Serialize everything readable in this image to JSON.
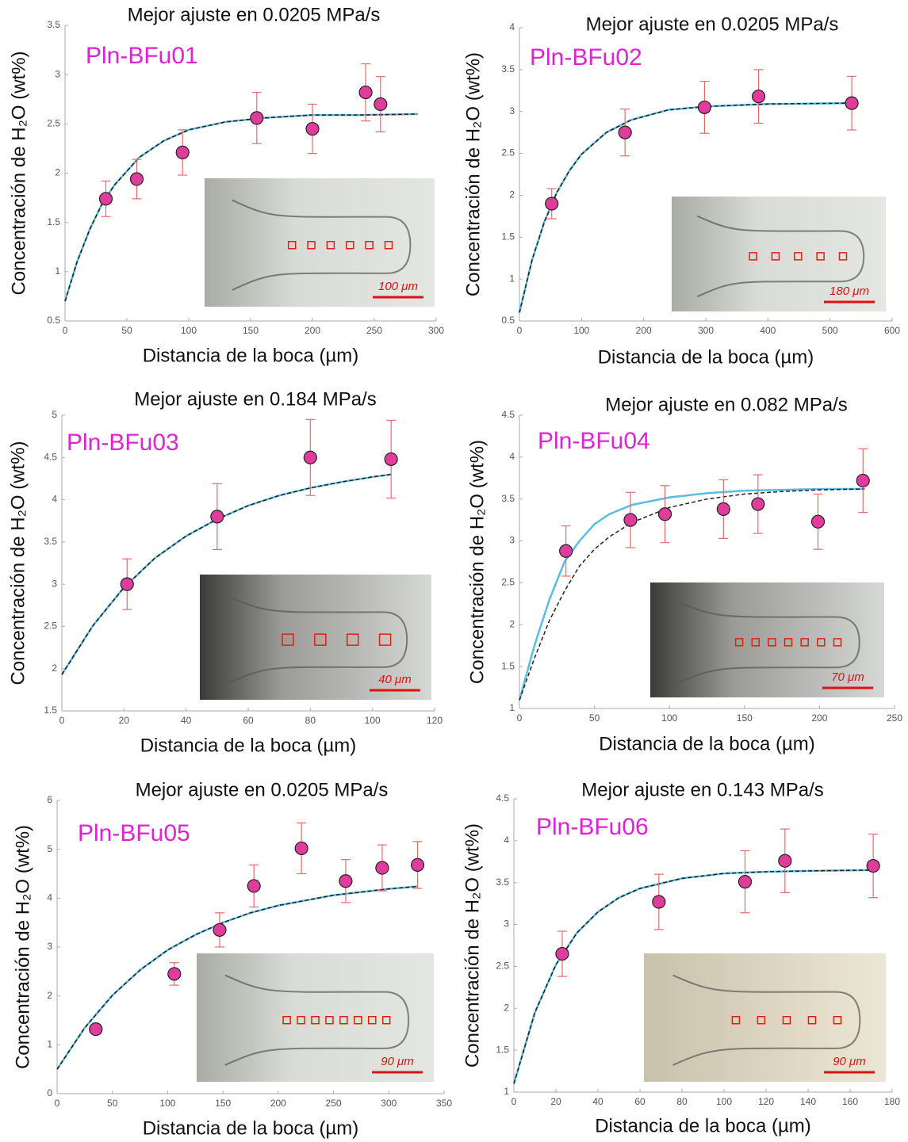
{
  "chart_data": [
    {
      "type": "scatter",
      "title": "Mejor ajuste en 0.0205 MPa/s",
      "label": "Pln-BFu01",
      "xlabel": "Distancia de la boca (µm)",
      "ylabel": "Concentración de H₂O (wt%)",
      "x": [
        33,
        58,
        95,
        155,
        200,
        243,
        255
      ],
      "values": [
        1.74,
        1.94,
        2.21,
        2.56,
        2.45,
        2.82,
        2.7
      ],
      "errors": [
        0.18,
        0.2,
        0.23,
        0.26,
        0.25,
        0.29,
        0.28
      ],
      "color": "#e03c9c",
      "error_color": "#e86a6a",
      "curves": [
        {
          "color": "#5bbde0",
          "dash": false,
          "x": [
            0,
            10,
            20,
            30,
            40,
            60,
            80,
            100,
            130,
            160,
            200,
            240,
            285
          ],
          "values": [
            0.7,
            1.11,
            1.43,
            1.69,
            1.88,
            2.16,
            2.33,
            2.44,
            2.52,
            2.56,
            2.59,
            2.59,
            2.6
          ]
        },
        {
          "color": "#222222",
          "dash": true,
          "x": [
            0,
            10,
            20,
            30,
            40,
            60,
            80,
            100,
            130,
            160,
            200,
            240,
            285
          ],
          "values": [
            0.7,
            1.11,
            1.43,
            1.69,
            1.88,
            2.16,
            2.33,
            2.44,
            2.52,
            2.56,
            2.59,
            2.59,
            2.6
          ]
        }
      ],
      "xlim": [
        0,
        300
      ],
      "ylim": [
        0.5,
        3.5
      ],
      "xticks": [
        0,
        50,
        100,
        150,
        200,
        250,
        300
      ],
      "yticks": [
        0.5,
        1,
        1.5,
        2,
        2.5,
        3,
        3.5
      ],
      "inset_scale": "100 μm"
    },
    {
      "type": "scatter",
      "title": "Mejor ajuste en 0.0205 MPa/s",
      "label": "Pln-BFu02",
      "xlabel": "Distancia de la boca (µm)",
      "ylabel": "Concentración de H₂O (wt%)",
      "x": [
        52,
        170,
        298,
        385,
        535
      ],
      "values": [
        1.9,
        2.75,
        3.05,
        3.18,
        3.1
      ],
      "errors": [
        0.18,
        0.28,
        0.31,
        0.32,
        0.32
      ],
      "color": "#e03c9c",
      "error_color": "#e86a6a",
      "curves": [
        {
          "color": "#5bbde0",
          "dash": false,
          "x": [
            0,
            20,
            40,
            60,
            80,
            100,
            140,
            180,
            240,
            300,
            400,
            540
          ],
          "values": [
            0.6,
            1.22,
            1.68,
            2.03,
            2.29,
            2.49,
            2.75,
            2.9,
            3.02,
            3.06,
            3.09,
            3.1
          ]
        },
        {
          "color": "#222222",
          "dash": true,
          "x": [
            0,
            20,
            40,
            60,
            80,
            100,
            140,
            180,
            240,
            300,
            400,
            540
          ],
          "values": [
            0.6,
            1.22,
            1.68,
            2.03,
            2.29,
            2.49,
            2.75,
            2.9,
            3.02,
            3.06,
            3.09,
            3.1
          ]
        }
      ],
      "xlim": [
        0,
        600
      ],
      "ylim": [
        0.5,
        4
      ],
      "xticks": [
        0,
        100,
        200,
        300,
        400,
        500,
        600
      ],
      "yticks": [
        0.5,
        1,
        1.5,
        2,
        2.5,
        3,
        3.5,
        4
      ],
      "inset_scale": "180 μm"
    },
    {
      "type": "scatter",
      "title": "Mejor ajuste en 0.184 MPa/s",
      "label": "Pln-BFu03",
      "xlabel": "Distancia de la boca (µm)",
      "ylabel": "Concentración de H₂O (wt%)",
      "x": [
        21,
        50,
        80,
        106
      ],
      "values": [
        3.0,
        3.8,
        4.5,
        4.48
      ],
      "errors": [
        0.3,
        0.39,
        0.45,
        0.46
      ],
      "color": "#e03c9c",
      "error_color": "#e86a6a",
      "curves": [
        {
          "color": "#5bbde0",
          "dash": false,
          "x": [
            0,
            10,
            20,
            30,
            40,
            50,
            60,
            70,
            80,
            90,
            100,
            106
          ],
          "values": [
            1.93,
            2.51,
            2.96,
            3.31,
            3.57,
            3.77,
            3.93,
            4.05,
            4.14,
            4.21,
            4.27,
            4.3
          ]
        },
        {
          "color": "#222222",
          "dash": true,
          "x": [
            0,
            10,
            20,
            30,
            40,
            50,
            60,
            70,
            80,
            90,
            100,
            106
          ],
          "values": [
            1.93,
            2.51,
            2.96,
            3.31,
            3.57,
            3.77,
            3.93,
            4.05,
            4.14,
            4.21,
            4.27,
            4.3
          ]
        }
      ],
      "xlim": [
        0,
        120
      ],
      "ylim": [
        1.5,
        5
      ],
      "xticks": [
        0,
        20,
        40,
        60,
        80,
        100,
        120
      ],
      "yticks": [
        1.5,
        2,
        2.5,
        3,
        3.5,
        4,
        4.5,
        5
      ],
      "inset_scale": "40 μm"
    },
    {
      "type": "scatter",
      "title": "Mejor ajuste en 0.082 MPa/s",
      "label": "Pln-BFu04",
      "xlabel": "Distancia de la boca (µm)",
      "ylabel": "Concentración de H₂O (wt%)",
      "x": [
        31,
        74,
        97,
        136,
        159,
        199,
        229
      ],
      "values": [
        2.88,
        3.25,
        3.32,
        3.38,
        3.44,
        3.23,
        3.72
      ],
      "errors": [
        0.3,
        0.33,
        0.34,
        0.35,
        0.35,
        0.33,
        0.38
      ],
      "color": "#e03c9c",
      "error_color": "#e86a6a",
      "curves": [
        {
          "color": "#5bbde0",
          "dash": false,
          "x": [
            0,
            10,
            20,
            30,
            40,
            50,
            60,
            75,
            100,
            125,
            150,
            175,
            200,
            230
          ],
          "values": [
            1.1,
            1.75,
            2.3,
            2.75,
            3.0,
            3.2,
            3.32,
            3.43,
            3.52,
            3.57,
            3.6,
            3.61,
            3.62,
            3.62
          ]
        },
        {
          "color": "#222222",
          "dash": true,
          "x": [
            0,
            10,
            20,
            30,
            40,
            50,
            60,
            75,
            100,
            125,
            150,
            175,
            200,
            230
          ],
          "values": [
            1.1,
            1.6,
            2.05,
            2.4,
            2.7,
            2.9,
            3.05,
            3.22,
            3.4,
            3.5,
            3.56,
            3.59,
            3.61,
            3.62
          ]
        }
      ],
      "xlim": [
        0,
        250
      ],
      "ylim": [
        1,
        4.5
      ],
      "xticks": [
        0,
        50,
        100,
        150,
        200,
        250
      ],
      "yticks": [
        1,
        1.5,
        2,
        2.5,
        3,
        3.5,
        4,
        4.5
      ],
      "inset_scale": "70 μm"
    },
    {
      "type": "scatter",
      "title": "Mejor ajuste en 0.0205 MPa/s",
      "label": "Pln-BFu05",
      "xlabel": "Distancia de la boca (µm)",
      "ylabel": "Concentración de H₂O (wt%)",
      "x": [
        35,
        106,
        147,
        178,
        221,
        261,
        294,
        326
      ],
      "values": [
        1.32,
        2.45,
        3.35,
        4.25,
        5.02,
        4.35,
        4.62,
        4.68
      ],
      "errors": [
        0.1,
        0.23,
        0.35,
        0.43,
        0.52,
        0.44,
        0.47,
        0.48
      ],
      "color": "#e03c9c",
      "error_color": "#e86a6a",
      "curves": [
        {
          "color": "#5bbde0",
          "dash": false,
          "x": [
            0,
            25,
            50,
            75,
            100,
            125,
            150,
            175,
            200,
            250,
            300,
            326
          ],
          "values": [
            0.5,
            1.35,
            2.01,
            2.53,
            2.94,
            3.25,
            3.5,
            3.7,
            3.85,
            4.06,
            4.19,
            4.24
          ]
        },
        {
          "color": "#222222",
          "dash": true,
          "x": [
            0,
            25,
            50,
            75,
            100,
            125,
            150,
            175,
            200,
            250,
            300,
            326
          ],
          "values": [
            0.5,
            1.35,
            2.01,
            2.53,
            2.94,
            3.25,
            3.5,
            3.7,
            3.85,
            4.06,
            4.19,
            4.24
          ]
        }
      ],
      "xlim": [
        0,
        350
      ],
      "ylim": [
        0,
        6
      ],
      "xticks": [
        0,
        50,
        100,
        150,
        200,
        250,
        300,
        350
      ],
      "yticks": [
        0,
        1,
        2,
        3,
        4,
        5,
        6
      ],
      "inset_scale": "90 μm"
    },
    {
      "type": "scatter",
      "title": "Mejor ajuste en 0.143 MPa/s",
      "label": "Pln-BFu06",
      "xlabel": "Distancia de la boca (µm)",
      "ylabel": "Concentración de H₂O (wt%)",
      "x": [
        23,
        69,
        110,
        129,
        171
      ],
      "values": [
        2.65,
        3.27,
        3.51,
        3.76,
        3.7
      ],
      "errors": [
        0.27,
        0.33,
        0.37,
        0.38,
        0.38
      ],
      "color": "#e03c9c",
      "error_color": "#e86a6a",
      "curves": [
        {
          "color": "#5bbde0",
          "dash": false,
          "x": [
            0,
            10,
            20,
            30,
            40,
            50,
            60,
            80,
            100,
            120,
            140,
            172
          ],
          "values": [
            1.1,
            1.95,
            2.52,
            2.9,
            3.15,
            3.32,
            3.43,
            3.55,
            3.61,
            3.63,
            3.64,
            3.65
          ]
        },
        {
          "color": "#222222",
          "dash": true,
          "x": [
            0,
            10,
            20,
            30,
            40,
            50,
            60,
            80,
            100,
            120,
            140,
            172
          ],
          "values": [
            1.1,
            1.95,
            2.52,
            2.9,
            3.15,
            3.32,
            3.43,
            3.55,
            3.61,
            3.63,
            3.64,
            3.65
          ]
        }
      ],
      "xlim": [
        0,
        180
      ],
      "ylim": [
        1,
        4.5
      ],
      "xticks": [
        0,
        20,
        40,
        60,
        80,
        100,
        120,
        140,
        160,
        180
      ],
      "yticks": [
        1,
        1.5,
        2,
        2.5,
        3,
        3.5,
        4,
        4.5
      ],
      "inset_scale": "90 μm"
    }
  ]
}
